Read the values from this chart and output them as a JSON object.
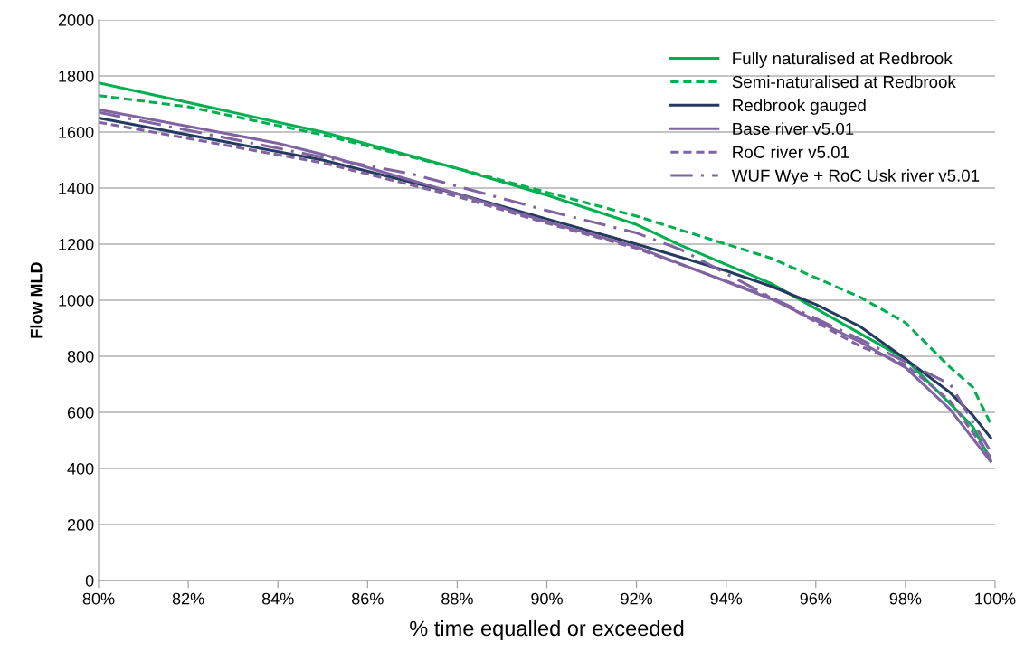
{
  "chart_data": {
    "type": "line",
    "xlabel": "% time equalled or exceeded",
    "ylabel": "Flow MLD",
    "xlim": [
      80,
      100
    ],
    "ylim": [
      0,
      2000
    ],
    "xticks": [
      {
        "value": 80,
        "label": "80%"
      },
      {
        "value": 82,
        "label": "82%"
      },
      {
        "value": 84,
        "label": "84%"
      },
      {
        "value": 86,
        "label": "86%"
      },
      {
        "value": 88,
        "label": "88%"
      },
      {
        "value": 90,
        "label": "90%"
      },
      {
        "value": 92,
        "label": "92%"
      },
      {
        "value": 94,
        "label": "94%"
      },
      {
        "value": 96,
        "label": "96%"
      },
      {
        "value": 98,
        "label": "98%"
      },
      {
        "value": 100,
        "label": "100%"
      }
    ],
    "yticks": [
      0,
      200,
      400,
      600,
      800,
      1000,
      1200,
      1400,
      1600,
      1800,
      2000
    ],
    "grid": "y",
    "legend": "top right",
    "marker": "none",
    "series": [
      {
        "name": "Fully naturalised at Redbrook",
        "color": "#00b050",
        "line_style": "solid",
        "x": [
          80,
          81,
          85,
          88,
          90,
          92,
          93,
          95,
          97,
          98,
          99,
          99.5,
          99.9
        ],
        "values": [
          1775,
          1740,
          1600,
          1470,
          1375,
          1270,
          1195,
          1060,
          880,
          790,
          630,
          550,
          430
        ]
      },
      {
        "name": "Semi-naturalised at Redbrook",
        "color": "#00b050",
        "line_style": "dashed",
        "x": [
          80,
          82,
          85,
          88,
          90,
          92,
          95,
          97,
          98,
          99,
          99.5,
          99.9
        ],
        "values": [
          1730,
          1690,
          1590,
          1470,
          1385,
          1300,
          1150,
          1010,
          920,
          760,
          690,
          560
        ]
      },
      {
        "name": "Redbrook gauged",
        "color": "#243a5e",
        "line_style": "solid",
        "x": [
          80,
          85,
          88,
          90,
          92,
          94,
          95,
          96,
          97,
          98,
          99,
          99.5,
          99.9
        ],
        "values": [
          1650,
          1500,
          1380,
          1290,
          1200,
          1105,
          1050,
          985,
          905,
          790,
          670,
          590,
          510
        ]
      },
      {
        "name": "Base river v5.01",
        "color": "#8064a2",
        "line_style": "solid",
        "x": [
          80,
          82,
          84,
          85,
          88,
          90,
          92,
          95,
          97,
          98,
          99,
          99.9
        ],
        "values": [
          1680,
          1620,
          1560,
          1520,
          1380,
          1280,
          1190,
          1005,
          850,
          760,
          610,
          425
        ]
      },
      {
        "name": "RoC river v5.01",
        "color": "#8064a2",
        "line_style": "dashed",
        "x": [
          80,
          85,
          88,
          90,
          92,
          95,
          97,
          98,
          99,
          99.9
        ],
        "values": [
          1635,
          1490,
          1370,
          1275,
          1185,
          1010,
          835,
          770,
          640,
          440
        ]
      },
      {
        "name": "WUF Wye + RoC Usk river v5.01",
        "color": "#8064a2",
        "line_style": "dashdot",
        "x": [
          80,
          85,
          87,
          90,
          92,
          93,
          95,
          97,
          98,
          99,
          99.9
        ],
        "values": [
          1670,
          1510,
          1450,
          1320,
          1240,
          1180,
          1010,
          860,
          780,
          700,
          460
        ]
      }
    ]
  }
}
